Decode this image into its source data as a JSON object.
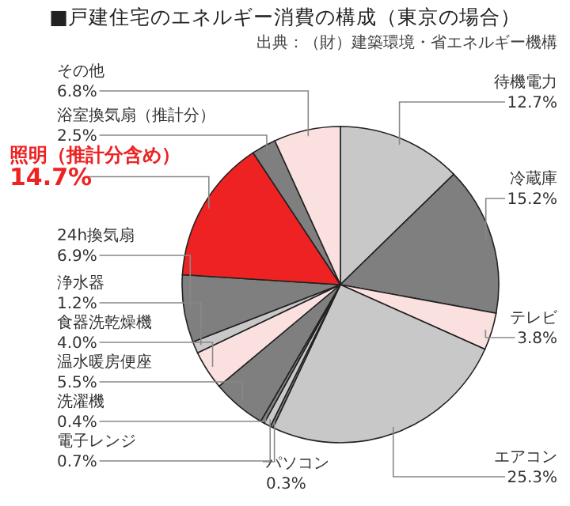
{
  "chart_data": {
    "type": "pie",
    "title": "■戸建住宅のエネルギー消費の構成（東京の場合）",
    "annotations": [
      "出典：（財）建築環境・省エネルギー機構"
    ],
    "categories": [
      "待機電力",
      "冷蔵庫",
      "テレビ",
      "エアコン",
      "パソコン",
      "電子レンジ",
      "洗濯機",
      "温水暖房便座",
      "食器洗乾燥機",
      "浄水器",
      "24h換気扇",
      "照明（推計分含め）",
      "浴室換気扇（推計分）",
      "その他"
    ],
    "values": [
      12.7,
      15.2,
      3.8,
      25.3,
      0.3,
      0.7,
      0.4,
      5.5,
      4.0,
      1.2,
      6.9,
      14.7,
      2.5,
      6.8
    ],
    "value_labels": [
      "12.7%",
      "15.2%",
      "3.8%",
      "25.3%",
      "0.3%",
      "0.7%",
      "0.4%",
      "5.5%",
      "4.0%",
      "1.2%",
      "6.9%",
      "14.7%",
      "2.5%",
      "6.8%"
    ],
    "colors": [
      "#c8c8c8",
      "#7f7f7f",
      "#fbe0e0",
      "#c8c8c8",
      "#7f7f7f",
      "#c8c8c8",
      "#7f7f7f",
      "#7f7f7f",
      "#fbe0e0",
      "#c8c8c8",
      "#7f7f7f",
      "#ee2222",
      "#7f7f7f",
      "#fbe0e0"
    ]
  }
}
